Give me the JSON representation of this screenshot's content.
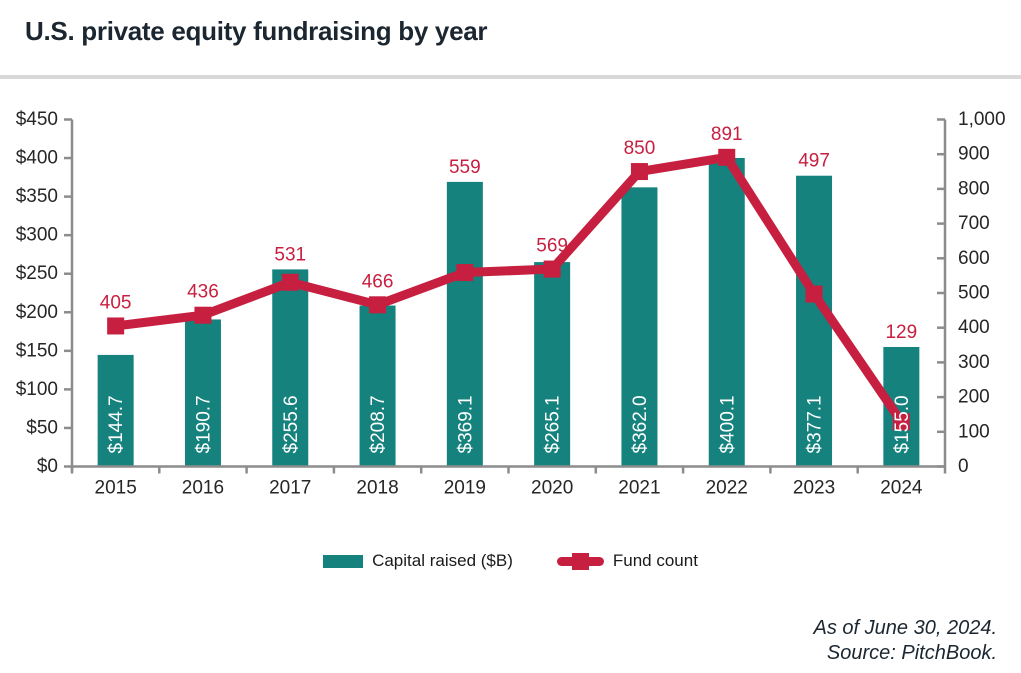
{
  "header": {
    "title": "U.S. private equity fundraising by year"
  },
  "chart_data": {
    "type": "combo-bar-line",
    "title": "U.S. private equity fundraising by year",
    "categories": [
      "2015",
      "2016",
      "2017",
      "2018",
      "2019",
      "2020",
      "2021",
      "2022",
      "2023",
      "2024"
    ],
    "series": [
      {
        "name": "Capital raised ($B)",
        "type": "bar",
        "axis": "left",
        "color": "#15827e",
        "values": [
          144.7,
          190.7,
          255.6,
          208.7,
          369.1,
          265.1,
          362.0,
          400.1,
          377.1,
          155.0
        ],
        "labels": [
          "$144.7",
          "$190.7",
          "$255.6",
          "$208.7",
          "$369.1",
          "$265.1",
          "$362.0",
          "$400.1",
          "$377.1",
          "$155.0"
        ],
        "label_color": "#ffffff"
      },
      {
        "name": "Fund count",
        "type": "line",
        "axis": "right",
        "color": "#c71f3f",
        "values": [
          405,
          436,
          531,
          466,
          559,
          569,
          850,
          891,
          497,
          129
        ],
        "labels": [
          "405",
          "436",
          "531",
          "466",
          "559",
          "569",
          "850",
          "891",
          "497",
          "129"
        ],
        "label_color": "#c71f3f"
      }
    ],
    "left_axis": {
      "min": 0,
      "max": 450,
      "step": 50,
      "tick_labels": [
        "$450",
        "$400",
        "$350",
        "$300",
        "$250",
        "$200",
        "$150",
        "$100",
        "$50",
        "$0"
      ]
    },
    "right_axis": {
      "min": 0,
      "max": 1000,
      "step": 100,
      "tick_labels": [
        "1,000",
        "900",
        "800",
        "700",
        "600",
        "500",
        "400",
        "300",
        "200",
        "100",
        "0"
      ]
    },
    "legend": [
      {
        "label": "Capital raised ($B)",
        "swatch": "bar"
      },
      {
        "label": "Fund count",
        "swatch": "line-marker"
      }
    ],
    "legend_position": "bottom",
    "grid": false,
    "axis_color": "#8c8c8c",
    "tick_text_color": "#262626"
  },
  "footer": {
    "as_of": "As of June 30, 2024.",
    "source": "Source: PitchBook."
  }
}
